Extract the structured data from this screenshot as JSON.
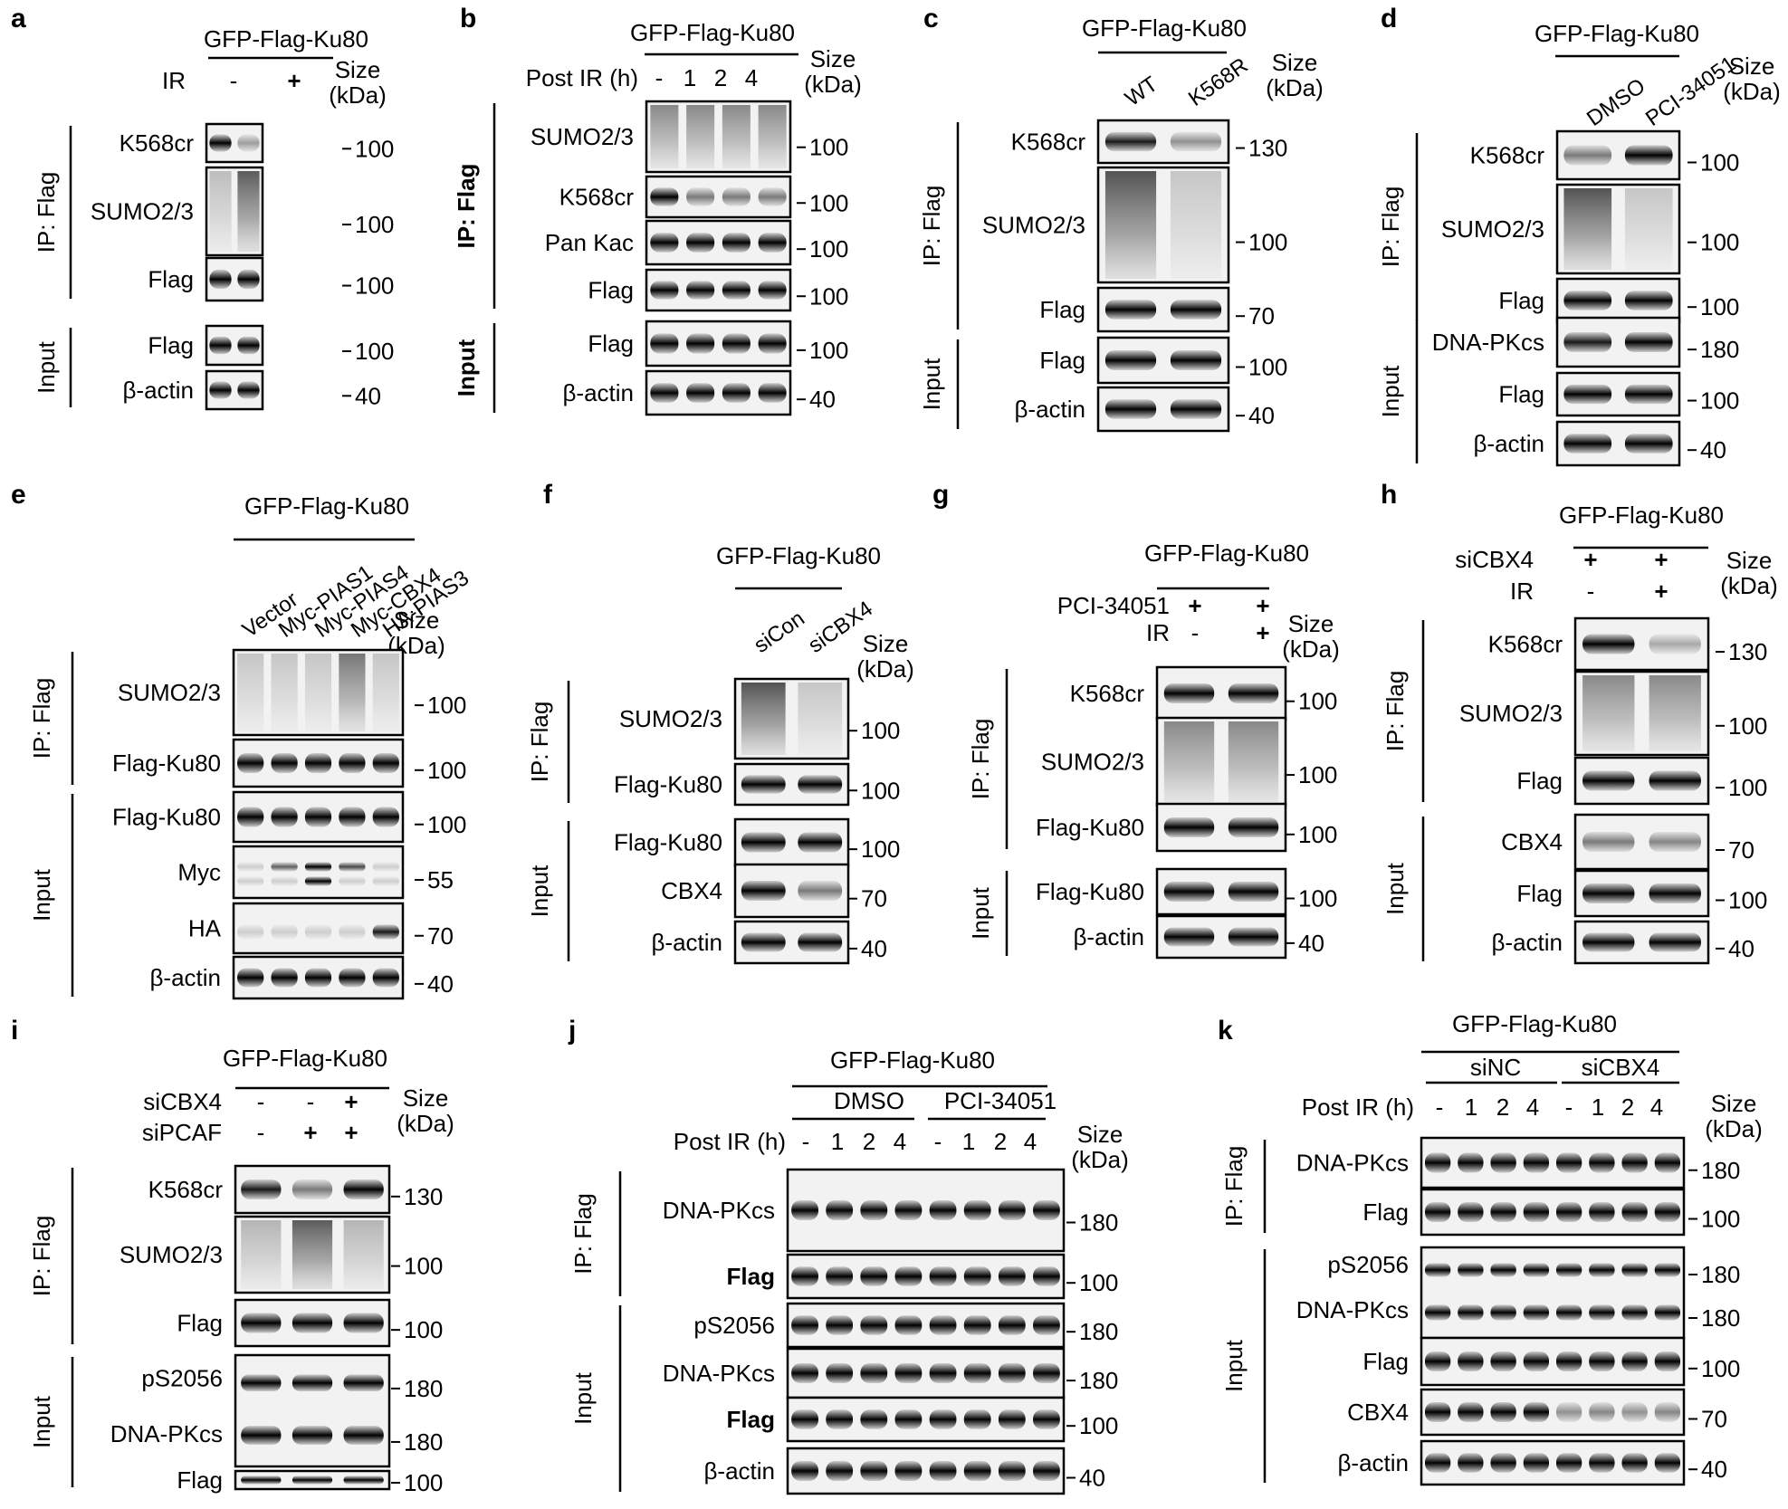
{
  "figure": {
    "panels": [
      {
        "letter": "a",
        "header": "GFP-Flag-Ku80",
        "conditions": [
          {
            "name": "IR",
            "values": [
              "-",
              "+"
            ]
          }
        ],
        "size_label": [
          "Size",
          "(kDa)"
        ],
        "groups": [
          {
            "name": "IP: Flag",
            "rows": [
              0,
              1,
              2
            ]
          },
          {
            "name": "Input",
            "rows": [
              3,
              4
            ]
          }
        ],
        "rows": [
          {
            "label": "K568cr",
            "markers": [
              "100"
            ]
          },
          {
            "label": "SUMO2/3",
            "markers": [
              "100"
            ]
          },
          {
            "label": "Flag",
            "markers": [
              "100"
            ]
          },
          {
            "label": "Flag",
            "markers": [
              "100"
            ]
          },
          {
            "label": "β-actin",
            "markers": [
              "40"
            ]
          }
        ]
      },
      {
        "letter": "b",
        "header": "GFP-Flag-Ku80",
        "conditions": [
          {
            "name": "Post IR (h)",
            "values": [
              "-",
              "1",
              "2",
              "4"
            ]
          }
        ],
        "size_label": [
          "Size",
          "(kDa)"
        ],
        "groups": [
          {
            "name": "IP: Flag",
            "rows": [
              0,
              1,
              2,
              3
            ]
          },
          {
            "name": "Input",
            "rows": [
              4,
              5
            ]
          }
        ],
        "rows": [
          {
            "label": "SUMO2/3",
            "markers": [
              "100"
            ]
          },
          {
            "label": "K568cr",
            "markers": [
              "100"
            ]
          },
          {
            "label": "Pan Kac",
            "markers": [
              "100"
            ]
          },
          {
            "label": "Flag",
            "markers": [
              "100"
            ]
          },
          {
            "label": "Flag",
            "markers": [
              "100"
            ]
          },
          {
            "label": "β-actin",
            "markers": [
              "40"
            ]
          }
        ]
      },
      {
        "letter": "c",
        "header": "GFP-Flag-Ku80",
        "lanes": [
          "WT",
          "K568R"
        ],
        "size_label": [
          "Size",
          "(kDa)"
        ],
        "groups": [
          {
            "name": "IP: Flag",
            "rows": [
              0,
              1,
              2
            ]
          },
          {
            "name": "Input",
            "rows": [
              3,
              4
            ]
          }
        ],
        "rows": [
          {
            "label": "K568cr",
            "markers": [
              "130"
            ]
          },
          {
            "label": "SUMO2/3",
            "markers": [
              "100"
            ]
          },
          {
            "label": "Flag",
            "markers": [
              "70"
            ]
          },
          {
            "label": "Flag",
            "markers": [
              "100"
            ]
          },
          {
            "label": "β-actin",
            "markers": [
              "40"
            ]
          }
        ]
      },
      {
        "letter": "d",
        "header": "GFP-Flag-Ku80",
        "lanes": [
          "DMSO",
          "PCI-34051"
        ],
        "size_label": [
          "Size",
          "(kDa)"
        ],
        "groups": [
          {
            "name": "IP: Flag",
            "rows": [
              0,
              1,
              2
            ]
          },
          {
            "name": "Input",
            "rows": [
              3,
              4,
              5
            ]
          }
        ],
        "rows": [
          {
            "label": "K568cr",
            "markers": [
              "100"
            ]
          },
          {
            "label": "SUMO2/3",
            "markers": [
              "100"
            ]
          },
          {
            "label": "Flag",
            "markers": [
              "100"
            ]
          },
          {
            "label": "DNA-PKcs",
            "markers": [
              "180"
            ]
          },
          {
            "label": "Flag",
            "markers": [
              "100"
            ]
          },
          {
            "label": "β-actin",
            "markers": [
              "40"
            ]
          }
        ]
      },
      {
        "letter": "e",
        "header": "GFP-Flag-Ku80",
        "lanes": [
          "Vector",
          "Myc-PIAS1",
          "Myc-PIAS4",
          "Myc-CBX4",
          "HA-PIAS3"
        ],
        "size_label": [
          "Size",
          "(kDa)"
        ],
        "groups": [
          {
            "name": "IP: Flag",
            "rows": [
              0,
              1
            ]
          },
          {
            "name": "Input",
            "rows": [
              2,
              3,
              4,
              5
            ]
          }
        ],
        "rows": [
          {
            "label": "SUMO2/3",
            "markers": [
              "100"
            ]
          },
          {
            "label": "Flag-Ku80",
            "markers": [
              "100"
            ]
          },
          {
            "label": "Flag-Ku80",
            "markers": [
              "100"
            ]
          },
          {
            "label": "Myc",
            "markers": [
              "55"
            ]
          },
          {
            "label": "HA",
            "markers": [
              "70"
            ]
          },
          {
            "label": "β-actin",
            "markers": [
              "40"
            ]
          }
        ]
      },
      {
        "letter": "f",
        "header": "GFP-Flag-Ku80",
        "lanes": [
          "siCon",
          "siCBX4"
        ],
        "size_label": [
          "Size",
          "(kDa)"
        ],
        "groups": [
          {
            "name": "IP: Flag",
            "rows": [
              0,
              1
            ]
          },
          {
            "name": "Input",
            "rows": [
              2,
              3,
              4
            ]
          }
        ],
        "rows": [
          {
            "label": "SUMO2/3",
            "markers": [
              "100"
            ]
          },
          {
            "label": "Flag-Ku80",
            "markers": [
              "100"
            ]
          },
          {
            "label": "Flag-Ku80",
            "markers": [
              "100"
            ]
          },
          {
            "label": "CBX4",
            "markers": [
              "70"
            ]
          },
          {
            "label": "β-actin",
            "markers": [
              "40"
            ]
          }
        ]
      },
      {
        "letter": "g",
        "header": "GFP-Flag-Ku80",
        "conditions": [
          {
            "name": "PCI-34051",
            "values": [
              "+",
              "+"
            ]
          },
          {
            "name": "IR",
            "values": [
              "-",
              "+"
            ]
          }
        ],
        "size_label": [
          "Size",
          "(kDa)"
        ],
        "groups": [
          {
            "name": "IP: Flag",
            "rows": [
              0,
              1,
              2
            ]
          },
          {
            "name": "Input",
            "rows": [
              3,
              4
            ]
          }
        ],
        "rows": [
          {
            "label": "K568cr",
            "markers": [
              "100"
            ]
          },
          {
            "label": "SUMO2/3",
            "markers": [
              "100"
            ]
          },
          {
            "label": "Flag-Ku80",
            "markers": [
              "100"
            ]
          },
          {
            "label": "Flag-Ku80",
            "markers": [
              "100"
            ]
          },
          {
            "label": "β-actin",
            "markers": [
              "40"
            ]
          }
        ]
      },
      {
        "letter": "h",
        "header": "GFP-Flag-Ku80",
        "conditions": [
          {
            "name": "siCBX4",
            "values": [
              "+",
              "+"
            ]
          },
          {
            "name": "IR",
            "values": [
              "-",
              "+"
            ]
          }
        ],
        "size_label": [
          "Size",
          "(kDa)"
        ],
        "groups": [
          {
            "name": "IP: Flag",
            "rows": [
              0,
              1,
              2
            ]
          },
          {
            "name": "Input",
            "rows": [
              3,
              4,
              5
            ]
          }
        ],
        "rows": [
          {
            "label": "K568cr",
            "markers": [
              "130"
            ]
          },
          {
            "label": "SUMO2/3",
            "markers": [
              "100"
            ]
          },
          {
            "label": "Flag",
            "markers": [
              "100"
            ]
          },
          {
            "label": "CBX4",
            "markers": [
              "70"
            ]
          },
          {
            "label": "Flag",
            "markers": [
              "100"
            ]
          },
          {
            "label": "β-actin",
            "markers": [
              "40"
            ]
          }
        ]
      },
      {
        "letter": "i",
        "header": "GFP-Flag-Ku80",
        "conditions": [
          {
            "name": "siCBX4",
            "values": [
              "-",
              "-",
              "+"
            ]
          },
          {
            "name": "siPCAF",
            "values": [
              "-",
              "+",
              "+"
            ]
          }
        ],
        "size_label": [
          "Size",
          "(kDa)"
        ],
        "groups": [
          {
            "name": "IP: Flag",
            "rows": [
              0,
              1,
              2
            ]
          },
          {
            "name": "Input",
            "rows": [
              3,
              4
            ]
          }
        ],
        "rows": [
          {
            "label": "K568cr",
            "markers": [
              "130"
            ]
          },
          {
            "label": "SUMO2/3",
            "markers": [
              "100"
            ]
          },
          {
            "label": "Flag",
            "markers": [
              "100"
            ]
          },
          {
            "label": "pS2056",
            "label2": "DNA-PKcs",
            "markers": [
              "180",
              "180"
            ]
          },
          {
            "label": "Flag",
            "markers": [
              "100"
            ]
          }
        ]
      },
      {
        "letter": "j",
        "header": "GFP-Flag-Ku80",
        "subgroups": [
          "DMSO",
          "PCI-34051"
        ],
        "conditions": [
          {
            "name": "Post IR (h)",
            "values": [
              "-",
              "1",
              "2",
              "4",
              "-",
              "1",
              "2",
              "4"
            ]
          }
        ],
        "size_label": [
          "Size",
          "(kDa)"
        ],
        "groups": [
          {
            "name": "IP: Flag",
            "rows": [
              0,
              1
            ]
          },
          {
            "name": "Input",
            "rows": [
              2,
              3,
              4,
              5
            ]
          }
        ],
        "rows": [
          {
            "label": "DNA-PKcs",
            "markers": [
              "180"
            ]
          },
          {
            "label": "Flag",
            "markers": [
              "100"
            ]
          },
          {
            "label": "pS2056",
            "markers": [
              "180"
            ]
          },
          {
            "label": "DNA-PKcs",
            "markers": [
              "180"
            ]
          },
          {
            "label": "Flag",
            "markers": [
              "100"
            ]
          },
          {
            "label": "β-actin",
            "markers": [
              "40"
            ]
          }
        ]
      },
      {
        "letter": "k",
        "header": "GFP-Flag-Ku80",
        "subgroups": [
          "siNC",
          "siCBX4"
        ],
        "conditions": [
          {
            "name": "Post IR (h)",
            "values": [
              "-",
              "1",
              "2",
              "4",
              "-",
              "1",
              "2",
              "4"
            ]
          }
        ],
        "size_label": [
          "Size",
          "(kDa)"
        ],
        "groups": [
          {
            "name": "IP: Flag",
            "rows": [
              0,
              1
            ]
          },
          {
            "name": "Input",
            "rows": [
              2,
              3,
              4,
              5
            ]
          }
        ],
        "rows": [
          {
            "label": "DNA-PKcs",
            "markers": [
              "180"
            ]
          },
          {
            "label": "Flag",
            "markers": [
              "100"
            ]
          },
          {
            "label": "pS2056",
            "label2": "DNA-PKcs",
            "markers": [
              "180",
              "180"
            ]
          },
          {
            "label": "Flag",
            "markers": [
              "100"
            ]
          },
          {
            "label": "CBX4",
            "markers": [
              "70"
            ]
          },
          {
            "label": "β-actin",
            "markers": [
              "40"
            ]
          }
        ]
      }
    ]
  }
}
